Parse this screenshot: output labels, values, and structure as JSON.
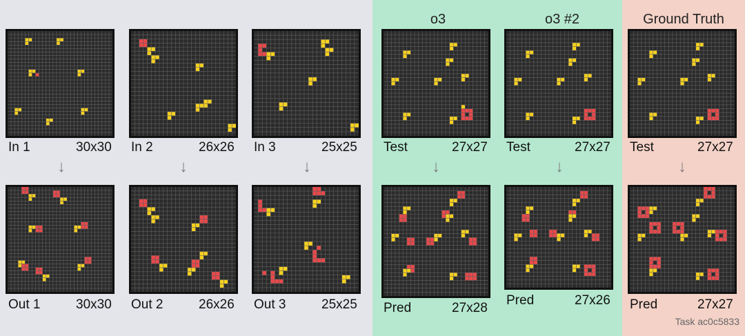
{
  "colors": {
    "yellow": "#f5d020",
    "red": "#e8484a",
    "bg": "#2b2b2b"
  },
  "headers": {
    "o3": "o3",
    "o3_2": "o3 #2",
    "gt": "Ground Truth"
  },
  "footer": "Task ac0c5833",
  "examples": [
    {
      "in_label": "In 1",
      "in_size": "30x30",
      "out_label": "Out 1",
      "out_size": "30x30"
    },
    {
      "in_label": "In 2",
      "in_size": "26x26",
      "out_label": "Out 2",
      "out_size": "26x26"
    },
    {
      "in_label": "In 3",
      "in_size": "25x25",
      "out_label": "Out 3",
      "out_size": "25x25"
    }
  ],
  "test": {
    "label": "Test",
    "size": "27x27",
    "pred_label": "Pred",
    "o3_pred_size": "27x28",
    "o3_2_pred_size": "27x26",
    "gt_pred_size": "27x27"
  },
  "arrow": "↓"
}
